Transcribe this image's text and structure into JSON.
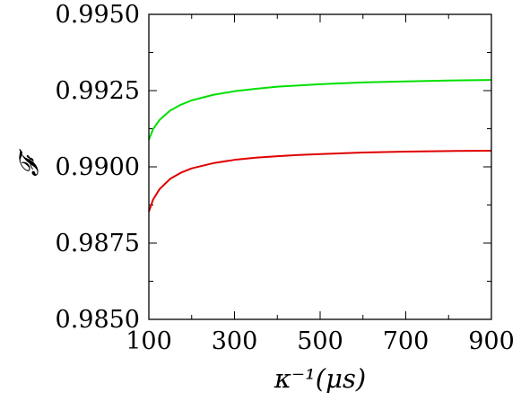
{
  "chart_data": {
    "type": "line",
    "title": "",
    "xlabel": "κ⁻¹(μs)",
    "ylabel": "𝓕",
    "xlim": [
      100,
      900
    ],
    "ylim": [
      0.985,
      0.995
    ],
    "x_ticks": [
      100,
      300,
      500,
      700,
      900
    ],
    "x_tick_labels": [
      "100",
      "300",
      "500",
      "700",
      "900"
    ],
    "y_ticks": [
      0.985,
      0.9875,
      0.99,
      0.9925,
      0.995
    ],
    "y_tick_labels": [
      "0.9850",
      "0.9875",
      "0.9900",
      "0.9925",
      "0.9950"
    ],
    "grid": false,
    "legend": "none",
    "series": [
      {
        "color": "#00e000",
        "x": [
          100,
          110,
          125,
          150,
          175,
          200,
          250,
          300,
          350,
          400,
          450,
          500,
          600,
          700,
          800,
          900
        ],
        "values": [
          0.99089,
          0.99124,
          0.99154,
          0.99185,
          0.99204,
          0.99218,
          0.99236,
          0.99248,
          0.99256,
          0.99263,
          0.99267,
          0.99271,
          0.99277,
          0.9928,
          0.99283,
          0.99285
        ]
      },
      {
        "color": "#e00000",
        "x": [
          100,
          110,
          125,
          150,
          175,
          200,
          250,
          300,
          350,
          400,
          450,
          500,
          600,
          700,
          800,
          900
        ],
        "values": [
          0.98853,
          0.98893,
          0.98927,
          0.98961,
          0.98981,
          0.98995,
          0.99012,
          0.99023,
          0.9903,
          0.99035,
          0.99039,
          0.99042,
          0.99047,
          0.9905,
          0.99052,
          0.99053
        ]
      }
    ]
  }
}
